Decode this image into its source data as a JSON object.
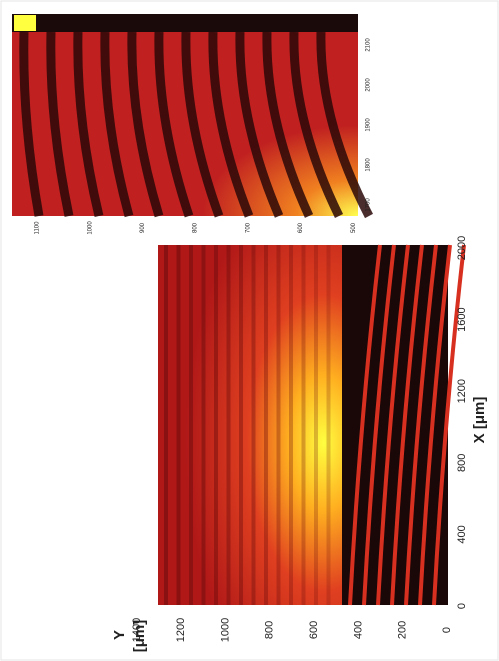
{
  "main_plot": {
    "x_label": "X [μm]",
    "y_label_symbol": "Y",
    "y_label_unit": "[μm]",
    "xticks": [
      0,
      400,
      800,
      1200,
      1600,
      2000
    ],
    "yticks": [
      0,
      200,
      400,
      600,
      800,
      1000,
      1200,
      1400
    ]
  },
  "inset": {
    "bottom_ticks": [
      1100,
      1000,
      900,
      800,
      700,
      600,
      500
    ],
    "right_ticks": [
      2100,
      2000,
      1900,
      1800,
      1700
    ]
  }
}
